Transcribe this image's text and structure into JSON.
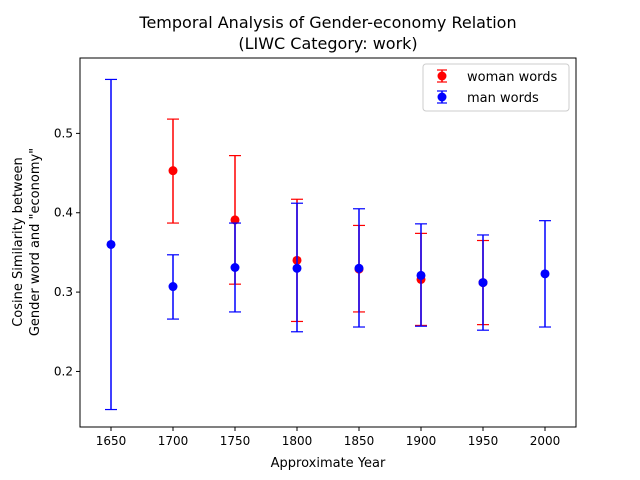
{
  "chart_data": {
    "type": "errorbar",
    "title_line1": "Temporal Analysis of Gender-economy Relation",
    "title_line2": "(LIWC Category: work)",
    "xlabel": "Approximate Year",
    "ylabel_line1": "Cosine Similarity between",
    "ylabel_line2": "Gender word and \"economy\"",
    "x_ticks": [
      "1650",
      "1700",
      "1750",
      "1800",
      "1850",
      "1900",
      "1950",
      "2000"
    ],
    "y_ticks": [
      "0.2",
      "0.3",
      "0.4",
      "0.5"
    ],
    "xlim": [
      1625,
      2025
    ],
    "ylim": [
      0.13,
      0.595
    ],
    "legend_position": "upper right",
    "grid": false,
    "series": [
      {
        "name": "woman words",
        "color": "#ff0000",
        "points": [
          {
            "x": 1700,
            "y": 0.453,
            "low": 0.387,
            "high": 0.518
          },
          {
            "x": 1750,
            "y": 0.391,
            "low": 0.31,
            "high": 0.472
          },
          {
            "x": 1800,
            "y": 0.34,
            "low": 0.263,
            "high": 0.417
          },
          {
            "x": 1850,
            "y": 0.329,
            "low": 0.275,
            "high": 0.384
          },
          {
            "x": 1900,
            "y": 0.316,
            "low": 0.258,
            "high": 0.374
          },
          {
            "x": 1950,
            "y": 0.312,
            "low": 0.259,
            "high": 0.365
          }
        ]
      },
      {
        "name": "man words",
        "color": "#0000ff",
        "points": [
          {
            "x": 1650,
            "y": 0.36,
            "low": 0.152,
            "high": 0.568
          },
          {
            "x": 1700,
            "y": 0.307,
            "low": 0.266,
            "high": 0.347
          },
          {
            "x": 1750,
            "y": 0.331,
            "low": 0.275,
            "high": 0.387
          },
          {
            "x": 1800,
            "y": 0.33,
            "low": 0.25,
            "high": 0.412
          },
          {
            "x": 1850,
            "y": 0.33,
            "low": 0.256,
            "high": 0.405
          },
          {
            "x": 1900,
            "y": 0.321,
            "low": 0.257,
            "high": 0.386
          },
          {
            "x": 1950,
            "y": 0.312,
            "low": 0.252,
            "high": 0.372
          },
          {
            "x": 2000,
            "y": 0.323,
            "low": 0.256,
            "high": 0.39
          }
        ]
      }
    ]
  }
}
